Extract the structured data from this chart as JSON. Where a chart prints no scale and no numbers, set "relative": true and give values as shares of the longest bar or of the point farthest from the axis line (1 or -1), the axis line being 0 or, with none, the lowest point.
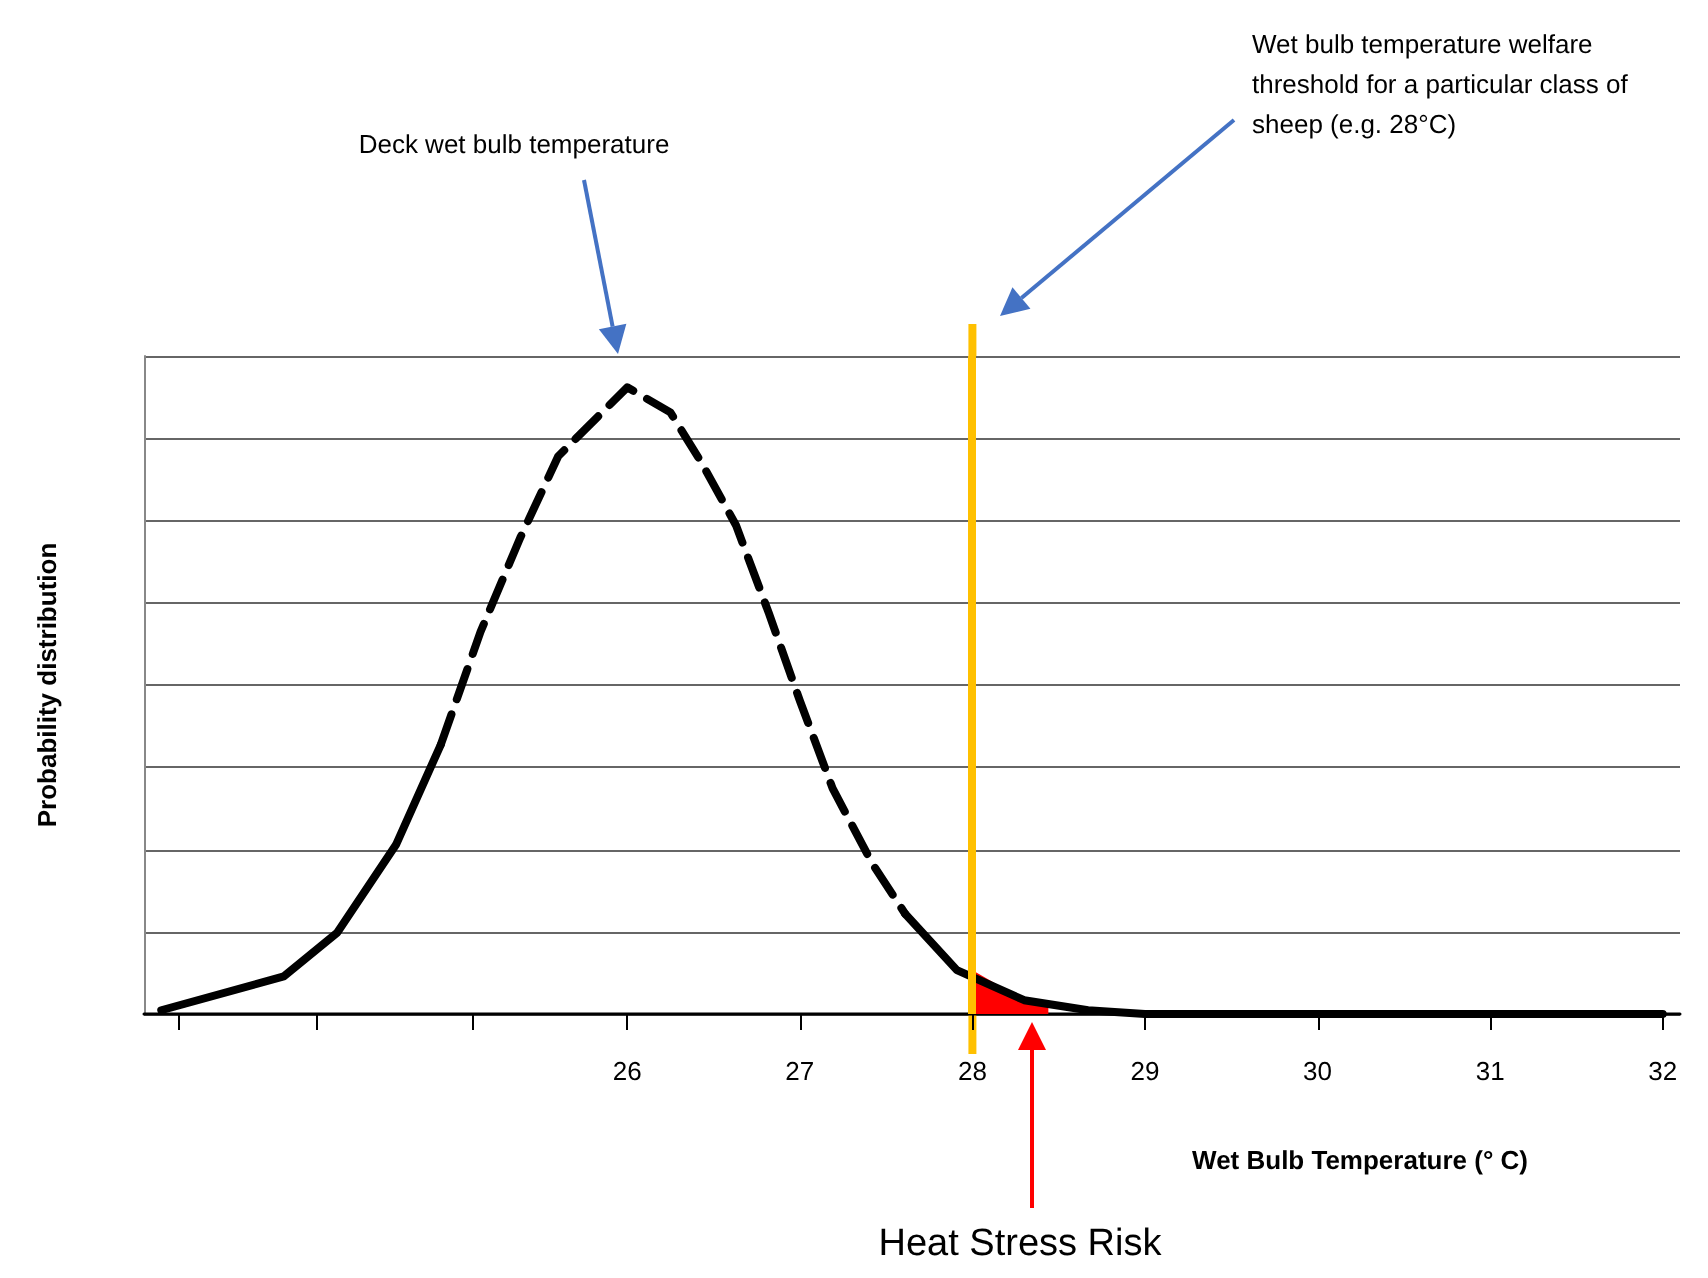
{
  "chart_data": {
    "type": "line",
    "relative": true,
    "xlabel": "Wet Bulb Temperature (° C)",
    "ylabel": "Probability distribution",
    "xlim": [
      23.2,
      32.1
    ],
    "xticks": [
      {
        "value": 23.4,
        "label": null
      },
      {
        "value": 24.2,
        "label": null
      },
      {
        "value": 25.1,
        "label": null
      },
      26,
      27,
      28,
      29,
      30,
      31,
      32
    ],
    "series": [
      {
        "line_style": "solid",
        "color": "#000000",
        "x": [
          23.3,
          24.01,
          24.32,
          24.66,
          24.92
        ],
        "values": [
          0.006,
          0.06,
          0.13,
          0.27,
          0.43
        ]
      },
      {
        "line_style": "dashed",
        "color": "#000000",
        "x": [
          24.92,
          25.15,
          25.38,
          25.6,
          26,
          26.25,
          26.43,
          26.63,
          26.82,
          27.0,
          27.19,
          27.42,
          27.61
        ],
        "values": [
          0.43,
          0.61,
          0.76,
          0.89,
          1,
          0.96,
          0.88,
          0.78,
          0.64,
          0.5,
          0.36,
          0.24,
          0.16
        ]
      },
      {
        "line_style": "solid",
        "color": "#000000",
        "x": [
          27.61,
          27.91,
          28.3,
          28.67,
          29.0,
          32.0
        ],
        "values": [
          0.16,
          0.07,
          0.022,
          0.006,
          0,
          0
        ]
      },
      {
        "type": "area",
        "color": "#ff0000",
        "x": [
          28,
          28.3,
          28.44
        ],
        "values": [
          0.07,
          0.022,
          0.012
        ]
      }
    ],
    "ref_lines": [
      {
        "axis": "x",
        "value": 28,
        "color": "#ffc000"
      }
    ],
    "annotations": [
      "Deck wet bulb temperature",
      "Wet bulb temperature welfare threshold for a particular class of sheep (e.g. 28°C)",
      "Heat Stress Risk"
    ],
    "grid": "y",
    "marker": "none"
  }
}
